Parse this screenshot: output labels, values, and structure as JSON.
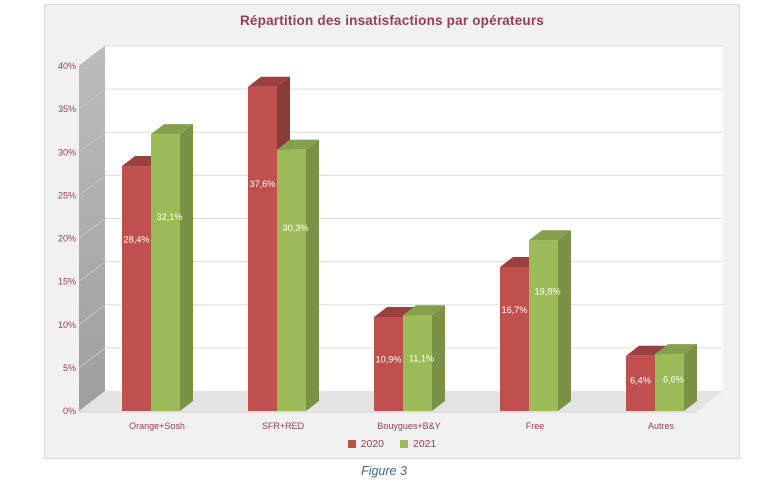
{
  "chart": {
    "background": "#f1f1f1",
    "border_color": "#d9d9d9",
    "text_color": "#9a3b5c",
    "gridline_color": "#dcdcdc",
    "wall_color": "#adadad",
    "floor_color": "#e3e3e3"
  },
  "chart_data": {
    "type": "bar",
    "subtype": "3d-clustered-column",
    "title": "Répartition des insatisfactions par opérateurs",
    "categories": [
      "Orange+Sosh",
      "SFR+RED",
      "Bouygues+B&Y",
      "Free",
      "Autres"
    ],
    "series": [
      {
        "name": "2020",
        "color": "#c0504d",
        "values": [
          28.4,
          37.6,
          10.9,
          16.7,
          6.4
        ],
        "labels": [
          "28,4%",
          "37,6%",
          "10,9%",
          "16,7%",
          "6,4%"
        ]
      },
      {
        "name": "2021",
        "color": "#9bbb59",
        "values": [
          32.1,
          30.3,
          11.1,
          19.8,
          6.6
        ],
        "labels": [
          "32,1%",
          "30,3%",
          "11,1%",
          "19,8%",
          "6,6%"
        ]
      }
    ],
    "xlabel": "",
    "ylabel": "",
    "ylim": [
      0,
      40
    ],
    "y_tick_step": 5,
    "y_ticks": [
      "0%",
      "5%",
      "10%",
      "15%",
      "20%",
      "25%",
      "30%",
      "35%",
      "40%"
    ],
    "grid": true,
    "legend_position": "bottom",
    "data_label_color": "#ffffff"
  },
  "caption": {
    "text": "Figure 3"
  }
}
